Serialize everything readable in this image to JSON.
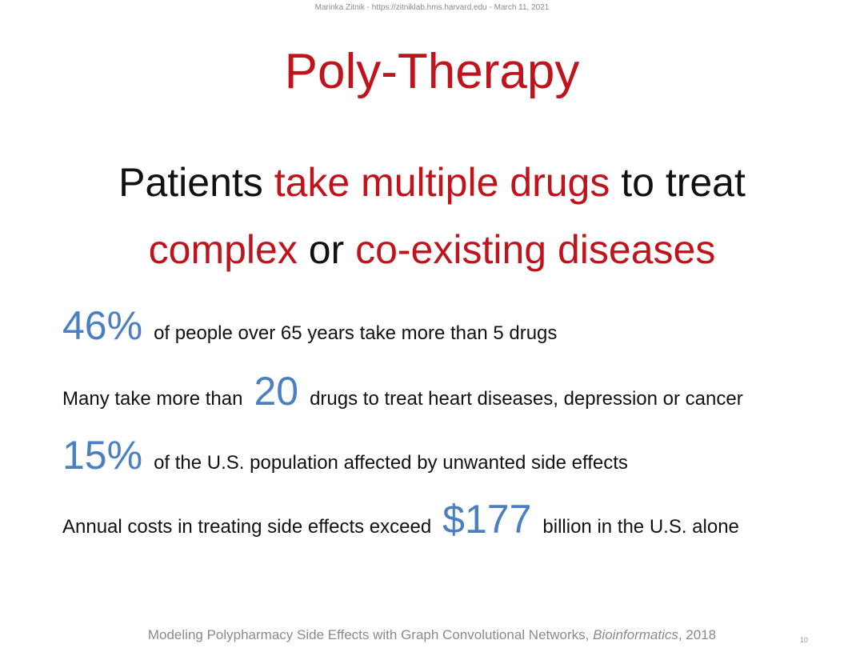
{
  "header": {
    "note": "Marinka Zitnik - https://zitniklab.hms.harvard.edu - March 11, 2021"
  },
  "title": "Poly-Therapy",
  "headline": {
    "part1": "Patients ",
    "part2": "take multiple drugs",
    "part3": " to treat",
    "part4": "complex",
    "part5": " or ",
    "part6": "co-existing diseases"
  },
  "stats": [
    {
      "pre": "",
      "number": "46%",
      "post": "of people over 65 years take more than 5 drugs"
    },
    {
      "pre": "Many take more than",
      "number": "20",
      "post": "drugs to treat heart diseases, depression or cancer"
    },
    {
      "pre": "",
      "number": "15%",
      "post": "of the U.S. population affected by unwanted side effects"
    },
    {
      "pre": "Annual costs in treating side effects exceed",
      "number": "$177",
      "post": "billion in the U.S. alone"
    }
  ],
  "footer": {
    "citation_text": "Modeling Polypharmacy Side Effects with Graph Convolutional Networks, ",
    "journal": "Bioinformatics",
    "year": ", 2018",
    "page_number": "10"
  },
  "colors": {
    "title_red": "#c0141c",
    "stat_blue": "#4a7fc1",
    "muted_gray": "#8a8a8a"
  }
}
